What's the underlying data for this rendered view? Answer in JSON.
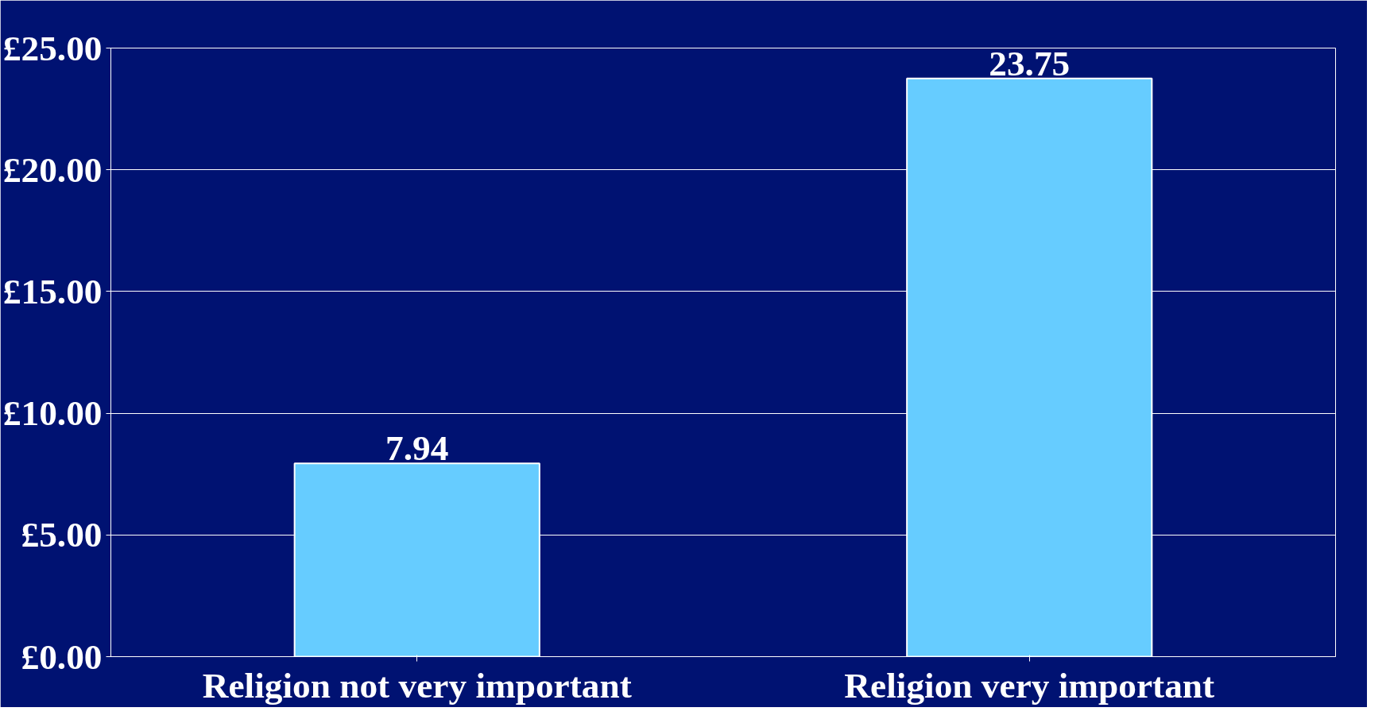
{
  "chart_data": {
    "type": "bar",
    "categories": [
      "Religion not very important",
      "Religion very important"
    ],
    "values": [
      7.94,
      23.75
    ],
    "color": "#66ccff",
    "data_labels": true,
    "ylim": [
      0,
      25
    ],
    "yticks": [
      {
        "value": 0,
        "label": "£0.00"
      },
      {
        "value": 5,
        "label": "£5.00"
      },
      {
        "value": 10,
        "label": "£10.00"
      },
      {
        "value": 15,
        "label": "£15.00"
      },
      {
        "value": 20,
        "label": "£20.00"
      },
      {
        "value": 25,
        "label": "£25.00"
      }
    ],
    "grid": "y"
  }
}
